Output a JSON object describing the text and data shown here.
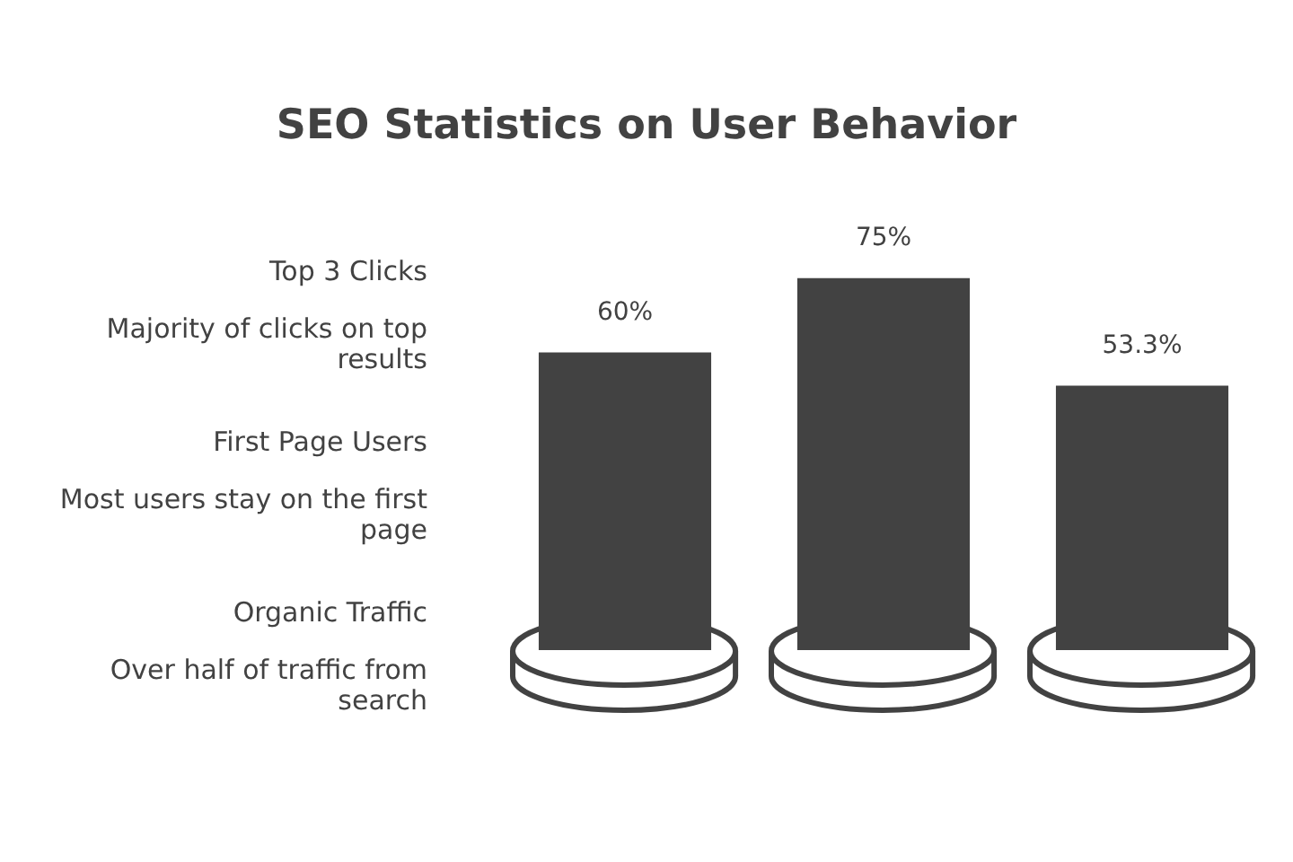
{
  "chart_data": {
    "type": "bar",
    "title": "SEO Statistics on User Behavior",
    "categories": [
      null,
      null,
      null
    ],
    "values": [
      60,
      75,
      53.3
    ],
    "color": "#424242",
    "value_labels": [
      "60%",
      "75%",
      "53.3%"
    ],
    "annotations": [
      "Top 3 Clicks",
      "Majority of clicks on top results",
      "First Page Users",
      "Most users stay on the first page",
      "Organic Traffic",
      "Over half of traffic from search"
    ],
    "tick_labels": false
  }
}
